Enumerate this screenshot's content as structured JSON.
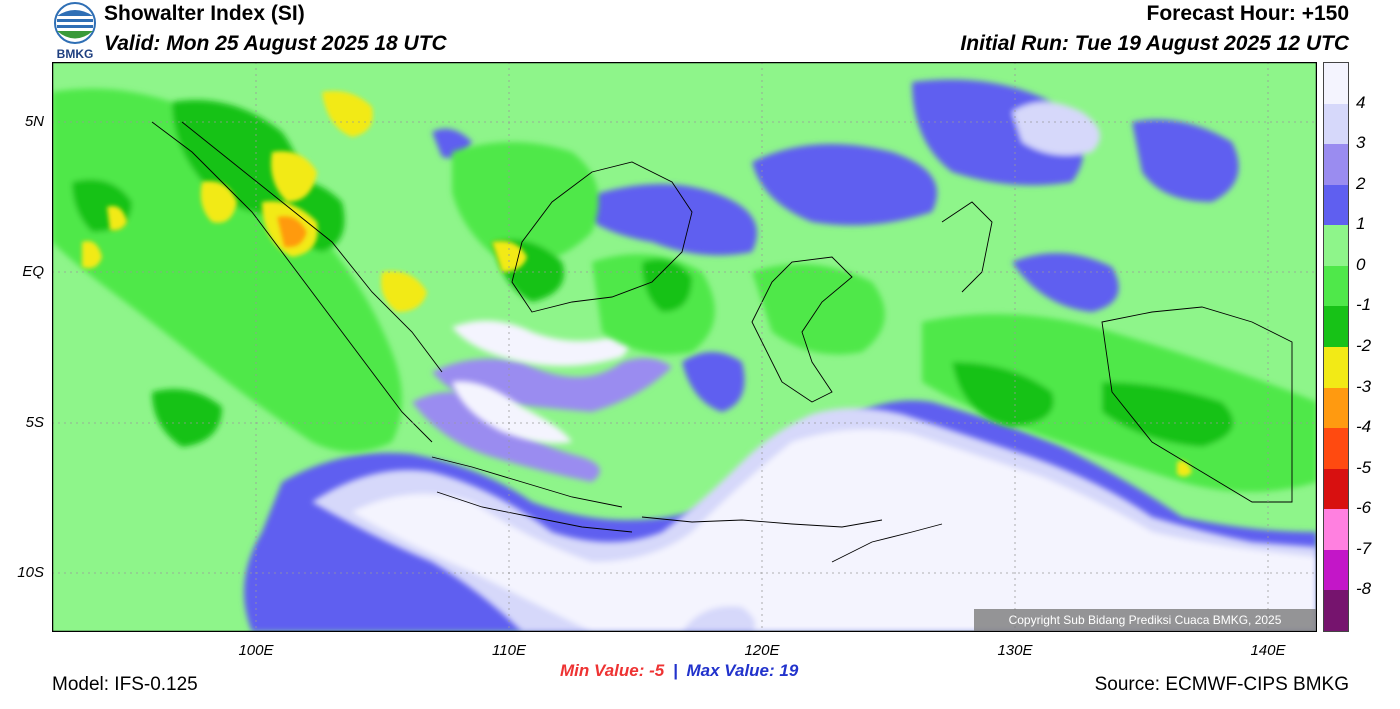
{
  "header": {
    "title": "Showalter Index (SI)",
    "valid": "Valid: Mon 25 August 2025 18 UTC",
    "forecast_hour": "Forecast Hour: +150",
    "initial_run": "Initial Run: Tue 19 August 2025 12 UTC"
  },
  "logo": {
    "text": "BMKG"
  },
  "map": {
    "lat_labels": [
      "5N",
      "EQ",
      "5S",
      "10S"
    ],
    "lon_labels": [
      "100E",
      "110E",
      "120E",
      "130E",
      "140E"
    ],
    "copyright": "Copyright Sub Bidang Prediksi Cuaca BMKG, 2025"
  },
  "stats": {
    "min_label": "Min Value:",
    "min_value": "-5",
    "separator": "|",
    "max_label": "Max Value:",
    "max_value": "19"
  },
  "colorbar": {
    "labels": [
      "4",
      "3",
      "2",
      "1",
      "0",
      "-1",
      "-2",
      "-3",
      "-4",
      "-5",
      "-6",
      "-7",
      "-8"
    ],
    "colors": [
      "#f4f4fe",
      "#d6d8fa",
      "#9a8cf0",
      "#5f5ff0",
      "#8ef58a",
      "#4fe84a",
      "#17c217",
      "#f2ea16",
      "#ff9a10",
      "#ff4a10",
      "#d81010",
      "#ff80e0",
      "#c316c8",
      "#76146e"
    ]
  },
  "footer": {
    "model": "Model: IFS-0.125",
    "source": "Source: ECMWF-CIPS BMKG"
  }
}
